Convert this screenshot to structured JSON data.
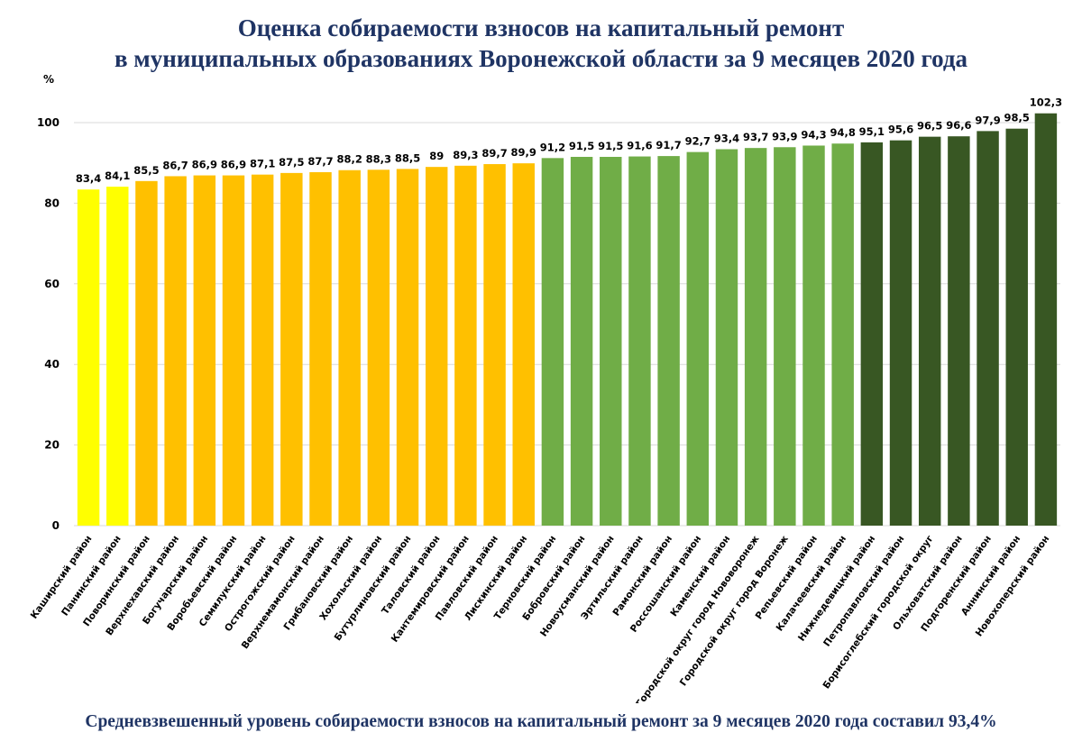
{
  "title": {
    "line1": "Оценка собираемости взносов на капитальный ремонт",
    "line2": "в муниципальных образованиях Воронежской области за 9 месяцев 2020 года"
  },
  "footer": "Средневзвешенный уровень собираемости взносов на капитальный ремонт за 9 месяцев 2020 года составил 93,4%",
  "colors": {
    "yellow": "#ffff00",
    "orange": "#ffc000",
    "light_green": "#70ad47",
    "dark_green": "#385723",
    "grid": "#d9d9d9",
    "title": "#1f3464"
  },
  "chart_data": {
    "type": "bar",
    "ylabel": "%",
    "ylim": [
      0,
      100
    ],
    "yticks": [
      0,
      20,
      40,
      60,
      80,
      100
    ],
    "grid": true,
    "categories": [
      "Каширский район",
      "Панинский район",
      "Поворинский район",
      "Верхнехавский район",
      "Богучарский район",
      "Воробьевский район",
      "Семилукский район",
      "Острогожский район",
      "Верхнемамонский район",
      "Грибановский район",
      "Хохольский район",
      "Бутурлиновский район",
      "Таловский район",
      "Кантемировский район",
      "Павловский район",
      "Лискинский район",
      "Терновский район",
      "Бобровский район",
      "Новоусманский район",
      "Эртильский район",
      "Рамонский район",
      "Россошанский район",
      "Каменский район",
      "Городской округ город Нововоронеж",
      "Городской округ город Воронеж",
      "Репьевский район",
      "Калачеевский район",
      "Нижнедевицкий район",
      "Петропавловский район",
      "Борисоглебский городской округ",
      "Ольховатский район",
      "Подгоренский район",
      "Аннинский район",
      "Новохоперский район"
    ],
    "values": [
      83.4,
      84.1,
      85.5,
      86.7,
      86.9,
      86.9,
      87.1,
      87.5,
      87.7,
      88.2,
      88.3,
      88.5,
      89,
      89.3,
      89.7,
      89.9,
      91.2,
      91.5,
      91.5,
      91.6,
      91.7,
      92.7,
      93.4,
      93.7,
      93.9,
      94.3,
      94.8,
      95.1,
      95.6,
      96.5,
      96.6,
      97.9,
      98.5,
      102.3
    ],
    "value_labels": [
      "83,4",
      "84,1",
      "85,5",
      "86,7",
      "86,9",
      "86,9",
      "87,1",
      "87,5",
      "87,7",
      "88,2",
      "88,3",
      "88,5",
      "89",
      "89,3",
      "89,7",
      "89,9",
      "91,2",
      "91,5",
      "91,5",
      "91,6",
      "91,7",
      "92,7",
      "93,4",
      "93,7",
      "93,9",
      "94,3",
      "94,8",
      "95,1",
      "95,6",
      "96,5",
      "96,6",
      "97,9",
      "98,5",
      "102,3"
    ],
    "bar_color_groups": [
      "yellow",
      "yellow",
      "orange",
      "orange",
      "orange",
      "orange",
      "orange",
      "orange",
      "orange",
      "orange",
      "orange",
      "orange",
      "orange",
      "orange",
      "orange",
      "orange",
      "light_green",
      "light_green",
      "light_green",
      "light_green",
      "light_green",
      "light_green",
      "light_green",
      "light_green",
      "light_green",
      "light_green",
      "light_green",
      "dark_green",
      "dark_green",
      "dark_green",
      "dark_green",
      "dark_green",
      "dark_green",
      "dark_green"
    ]
  }
}
